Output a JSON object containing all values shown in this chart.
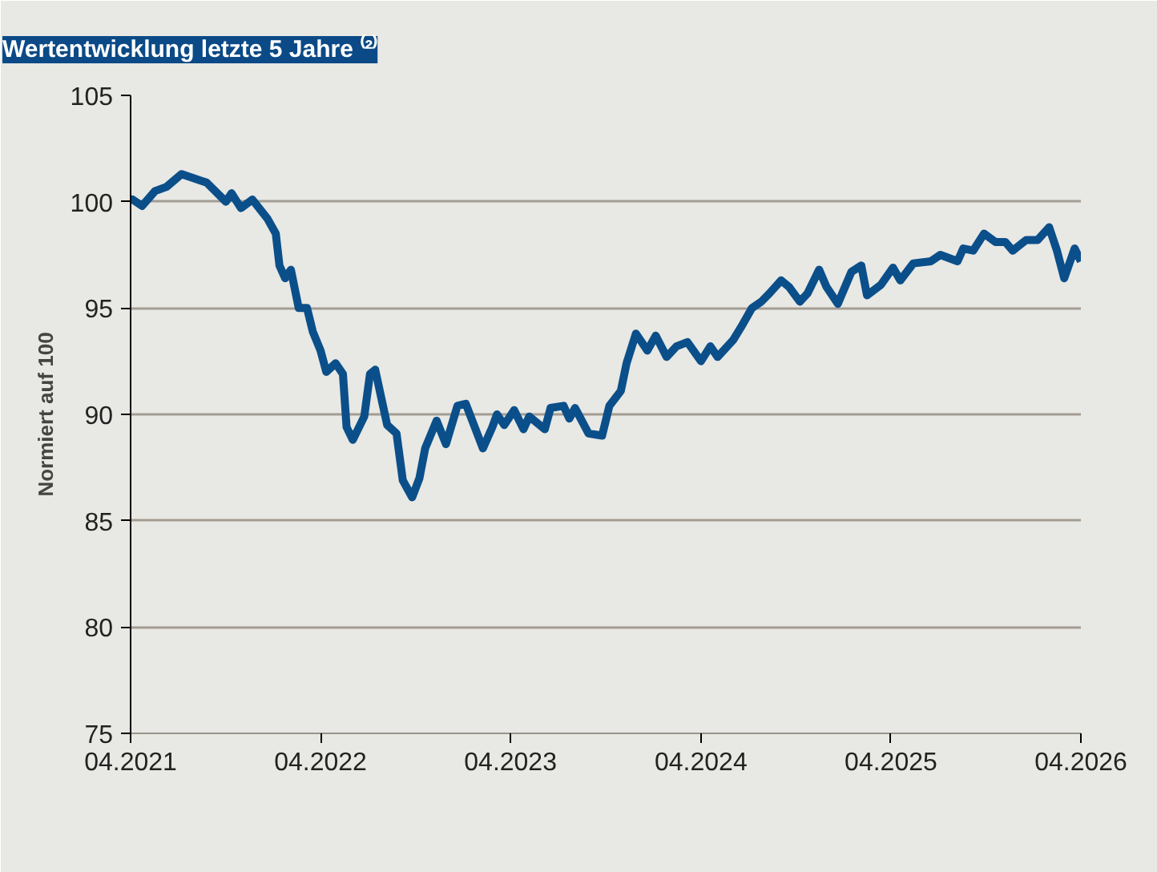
{
  "chart_data": {
    "type": "line",
    "title": "Wertentwicklung letzte 5 Jahre ⁽²⁾",
    "ylabel": "Normiert auf 100",
    "x": [
      "2021-04-01",
      "2021-04-05",
      "2021-04-23",
      "2021-05-18",
      "2021-06-09",
      "2021-07-08",
      "2021-08-25",
      "2021-10-01",
      "2021-10-12",
      "2021-10-30",
      "2021-11-21",
      "2021-12-20",
      "2022-01-05",
      "2022-01-12",
      "2022-01-23",
      "2022-02-03",
      "2022-02-18",
      "2022-03-06",
      "2022-03-17",
      "2022-04-01",
      "2022-04-12",
      "2022-04-30",
      "2022-05-14",
      "2022-05-21",
      "2022-06-02",
      "2022-06-24",
      "2022-07-05",
      "2022-07-15",
      "2022-07-30",
      "2022-08-07",
      "2022-08-25",
      "2022-09-06",
      "2022-09-24",
      "2022-10-08",
      "2022-10-19",
      "2022-11-10",
      "2022-11-28",
      "2022-12-20",
      "2023-01-05",
      "2023-02-07",
      "2023-02-25",
      "2023-03-06",
      "2023-03-20",
      "2023-04-08",
      "2023-04-26",
      "2023-05-07",
      "2023-06-06",
      "2023-06-17",
      "2023-07-12",
      "2023-07-23",
      "2023-08-03",
      "2023-08-29",
      "2023-09-24",
      "2023-10-08",
      "2023-10-30",
      "2023-11-10",
      "2023-11-28",
      "2023-12-20",
      "2024-01-05",
      "2024-01-26",
      "2024-02-14",
      "2024-03-06",
      "2024-04-01",
      "2024-04-19",
      "2024-05-03",
      "2024-06-02",
      "2024-06-17",
      "2024-07-08",
      "2024-07-26",
      "2024-08-11",
      "2024-09-02",
      "2024-09-17",
      "2024-10-08",
      "2024-10-23",
      "2024-11-14",
      "2024-11-28",
      "2024-12-20",
      "2025-01-15",
      "2025-02-03",
      "2025-02-14",
      "2025-03-13",
      "2025-04-05",
      "2025-04-19",
      "2025-05-14",
      "2025-06-17",
      "2025-07-05",
      "2025-08-07",
      "2025-08-18",
      "2025-09-06",
      "2025-09-27",
      "2025-10-19",
      "2025-11-07",
      "2025-11-21",
      "2025-12-17",
      "2026-01-08",
      "2026-01-30",
      "2026-02-14",
      "2026-02-28",
      "2026-03-20",
      "2026-04-01"
    ],
    "series": [
      {
        "color": "#0b4f8a",
        "values": [
          100.0,
          100.1,
          99.8,
          100.5,
          100.7,
          101.3,
          100.9,
          100.0,
          100.4,
          99.7,
          100.1,
          99.2,
          98.5,
          97.0,
          96.4,
          96.8,
          95.0,
          95.0,
          93.9,
          93.0,
          92.0,
          92.4,
          91.9,
          89.4,
          88.8,
          89.9,
          91.9,
          92.1,
          90.4,
          89.5,
          89.1,
          86.9,
          86.1,
          87.0,
          88.4,
          89.7,
          88.6,
          90.4,
          90.5,
          88.4,
          89.4,
          90.0,
          89.5,
          90.2,
          89.3,
          89.9,
          89.3,
          90.3,
          90.4,
          89.8,
          90.3,
          89.1,
          89.0,
          90.4,
          91.1,
          92.4,
          93.8,
          93.0,
          93.7,
          92.7,
          93.2,
          93.4,
          92.5,
          93.2,
          92.7,
          93.5,
          94.1,
          95.0,
          95.3,
          95.7,
          96.3,
          96.0,
          95.3,
          95.7,
          96.8,
          96.0,
          95.2,
          96.7,
          97.0,
          95.6,
          96.1,
          96.9,
          96.3,
          97.1,
          97.2,
          97.5,
          97.2,
          97.8,
          97.7,
          98.5,
          98.1,
          98.1,
          97.7,
          98.2,
          98.2,
          98.8,
          97.7,
          96.4,
          97.8,
          97.2
        ]
      }
    ],
    "xlim": [
      "2021-04",
      "2026-04"
    ],
    "xticks": [
      {
        "value": "2021-04",
        "label": "04.2021"
      },
      {
        "value": "2022-04",
        "label": "04.2022"
      },
      {
        "value": "2023-04",
        "label": "04.2023"
      },
      {
        "value": "2024-04",
        "label": "04.2024"
      },
      {
        "value": "2025-04",
        "label": "04.2025"
      },
      {
        "value": "2026-04",
        "label": "04.2026"
      }
    ],
    "ylim": [
      75,
      105
    ],
    "yticks": [
      75,
      80,
      85,
      90,
      95,
      100,
      105
    ],
    "grid": "y",
    "marker": "none",
    "line_style": "solid"
  }
}
